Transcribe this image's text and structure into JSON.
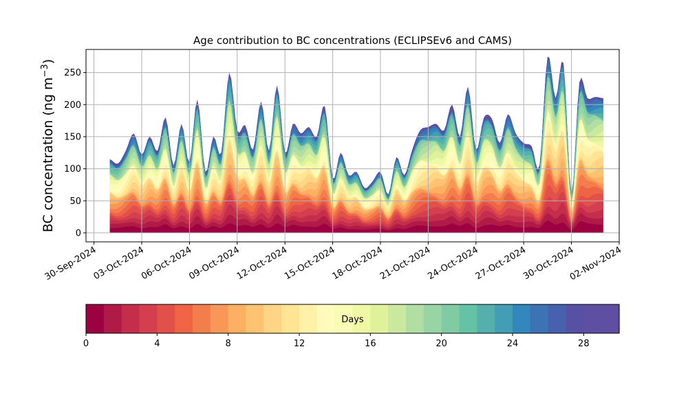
{
  "chart_data": {
    "type": "area",
    "title": "Age contribution to BC concentrations (ECLIPSEv6 and CAMS)",
    "xlabel": "",
    "ylabel": "BC concentration (ng m",
    "ylabel_sup": "−3",
    "ylabel_close": ")",
    "x_range": [
      "2024-09-29T12:00",
      "2024-11-02T00:00"
    ],
    "ylim": [
      -14,
      286
    ],
    "yticks": [
      0,
      50,
      100,
      150,
      200,
      250
    ],
    "xticks": [
      "2024-09-30",
      "2024-10-03",
      "2024-10-06",
      "2024-10-09",
      "2024-10-12",
      "2024-10-15",
      "2024-10-18",
      "2024-10-21",
      "2024-10-24",
      "2024-10-27",
      "2024-10-30",
      "2024-11-02"
    ],
    "xtick_labels": [
      "30-Sep-2024",
      "03-Oct-2024",
      "06-Oct-2024",
      "09-Oct-2024",
      "12-Oct-2024",
      "15-Oct-2024",
      "18-Oct-2024",
      "21-Oct-2024",
      "24-Oct-2024",
      "27-Oct-2024",
      "30-Oct-2024",
      "02-Nov-2024"
    ],
    "grid": true,
    "layers": 30,
    "total": {
      "dates": [
        "2024-10-01T00:00",
        "2024-10-01T12:00",
        "2024-10-02T00:00",
        "2024-10-02T12:00",
        "2024-10-03T00:00",
        "2024-10-03T12:00",
        "2024-10-04T00:00",
        "2024-10-04T12:00",
        "2024-10-05T00:00",
        "2024-10-05T12:00",
        "2024-10-06T00:00",
        "2024-10-06T12:00",
        "2024-10-07T00:00",
        "2024-10-07T12:00",
        "2024-10-08T00:00",
        "2024-10-08T12:00",
        "2024-10-09T00:00",
        "2024-10-09T12:00",
        "2024-10-10T00:00",
        "2024-10-10T12:00",
        "2024-10-11T00:00",
        "2024-10-11T12:00",
        "2024-10-12T00:00",
        "2024-10-12T12:00",
        "2024-10-13T00:00",
        "2024-10-13T12:00",
        "2024-10-14T00:00",
        "2024-10-14T12:00",
        "2024-10-15T00:00",
        "2024-10-15T12:00",
        "2024-10-16T00:00",
        "2024-10-16T12:00",
        "2024-10-17T00:00",
        "2024-10-17T12:00",
        "2024-10-18T00:00",
        "2024-10-18T12:00",
        "2024-10-19T00:00",
        "2024-10-19T12:00",
        "2024-10-20T00:00",
        "2024-10-20T12:00",
        "2024-10-21T00:00",
        "2024-10-21T12:00",
        "2024-10-22T00:00",
        "2024-10-22T12:00",
        "2024-10-23T00:00",
        "2024-10-23T12:00",
        "2024-10-24T00:00",
        "2024-10-24T12:00",
        "2024-10-25T00:00",
        "2024-10-25T12:00",
        "2024-10-26T00:00",
        "2024-10-26T12:00",
        "2024-10-27T00:00",
        "2024-10-27T12:00",
        "2024-10-28T00:00",
        "2024-10-28T12:00",
        "2024-10-29T00:00",
        "2024-10-29T12:00",
        "2024-10-30T00:00",
        "2024-10-30T12:00",
        "2024-10-31T00:00",
        "2024-10-31T12:00",
        "2024-11-01T00:00"
      ],
      "values": [
        115,
        108,
        128,
        155,
        122,
        150,
        128,
        180,
        105,
        170,
        110,
        208,
        95,
        150,
        125,
        250,
        160,
        168,
        130,
        205,
        128,
        230,
        125,
        170,
        155,
        165,
        150,
        198,
        85,
        125,
        90,
        95,
        70,
        80,
        95,
        60,
        118,
        90,
        130,
        160,
        165,
        170,
        160,
        200,
        150,
        228,
        130,
        180,
        178,
        140,
        185,
        155,
        140,
        135,
        105,
        275,
        210,
        265,
        60,
        235,
        210,
        212,
        210
      ]
    },
    "colorbar": {
      "label": "Days",
      "range": [
        0,
        30
      ],
      "ticks": [
        0,
        4,
        8,
        12,
        16,
        20,
        24,
        28
      ],
      "colors": [
        "#9e0142",
        "#b01a46",
        "#c52e4a",
        "#d53e4f",
        "#e2504a",
        "#ee6445",
        "#f47d4d",
        "#f99758",
        "#fdaf62",
        "#fdc272",
        "#fed584",
        "#fee593",
        "#fff1a8",
        "#fefbbc",
        "#f9fcb5",
        "#eef8a5",
        "#dff299",
        "#c8e99e",
        "#b0dea3",
        "#99d5a4",
        "#80cba4",
        "#66c2a5",
        "#55b0ad",
        "#439eb5",
        "#3387bc",
        "#3c73b5",
        "#4861ae",
        "#5850a3",
        "#5e4fa2",
        "#5e4fa2"
      ]
    }
  }
}
